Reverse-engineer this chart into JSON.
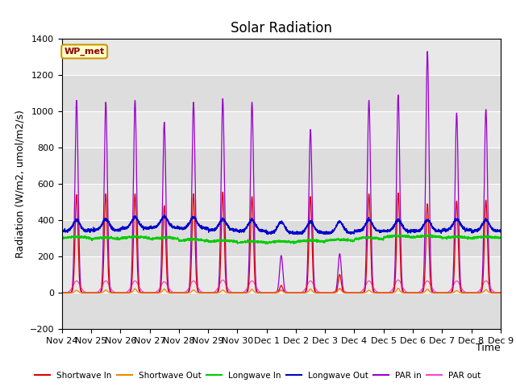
{
  "title": "Solar Radiation",
  "xlabel": "Time",
  "ylabel": "Radiation (W/m2, umol/m2/s)",
  "ylim": [
    -200,
    1400
  ],
  "yticks": [
    -200,
    0,
    200,
    400,
    600,
    800,
    1000,
    1200,
    1400
  ],
  "xtick_labels": [
    "Nov 24",
    "Nov 25",
    "Nov 26",
    "Nov 27",
    "Nov 28",
    "Nov 29",
    "Nov 30",
    "Dec 1",
    "Dec 2",
    "Dec 3",
    "Dec 4",
    "Dec 5",
    "Dec 6",
    "Dec 7",
    "Dec 8",
    "Dec 9"
  ],
  "station_label": "WP_met",
  "colors": {
    "shortwave_in": "#dd0000",
    "shortwave_out": "#ee8800",
    "longwave_in": "#00cc00",
    "longwave_out": "#0000cc",
    "par_in": "#9900cc",
    "par_out": "#ff44cc"
  },
  "legend": [
    "Shortwave In",
    "Shortwave Out",
    "Longwave In",
    "Longwave Out",
    "PAR in",
    "PAR out"
  ],
  "background_color": "#e8e8e8",
  "fig_background": "#ffffff",
  "title_fontsize": 12,
  "label_fontsize": 9,
  "tick_fontsize": 8
}
